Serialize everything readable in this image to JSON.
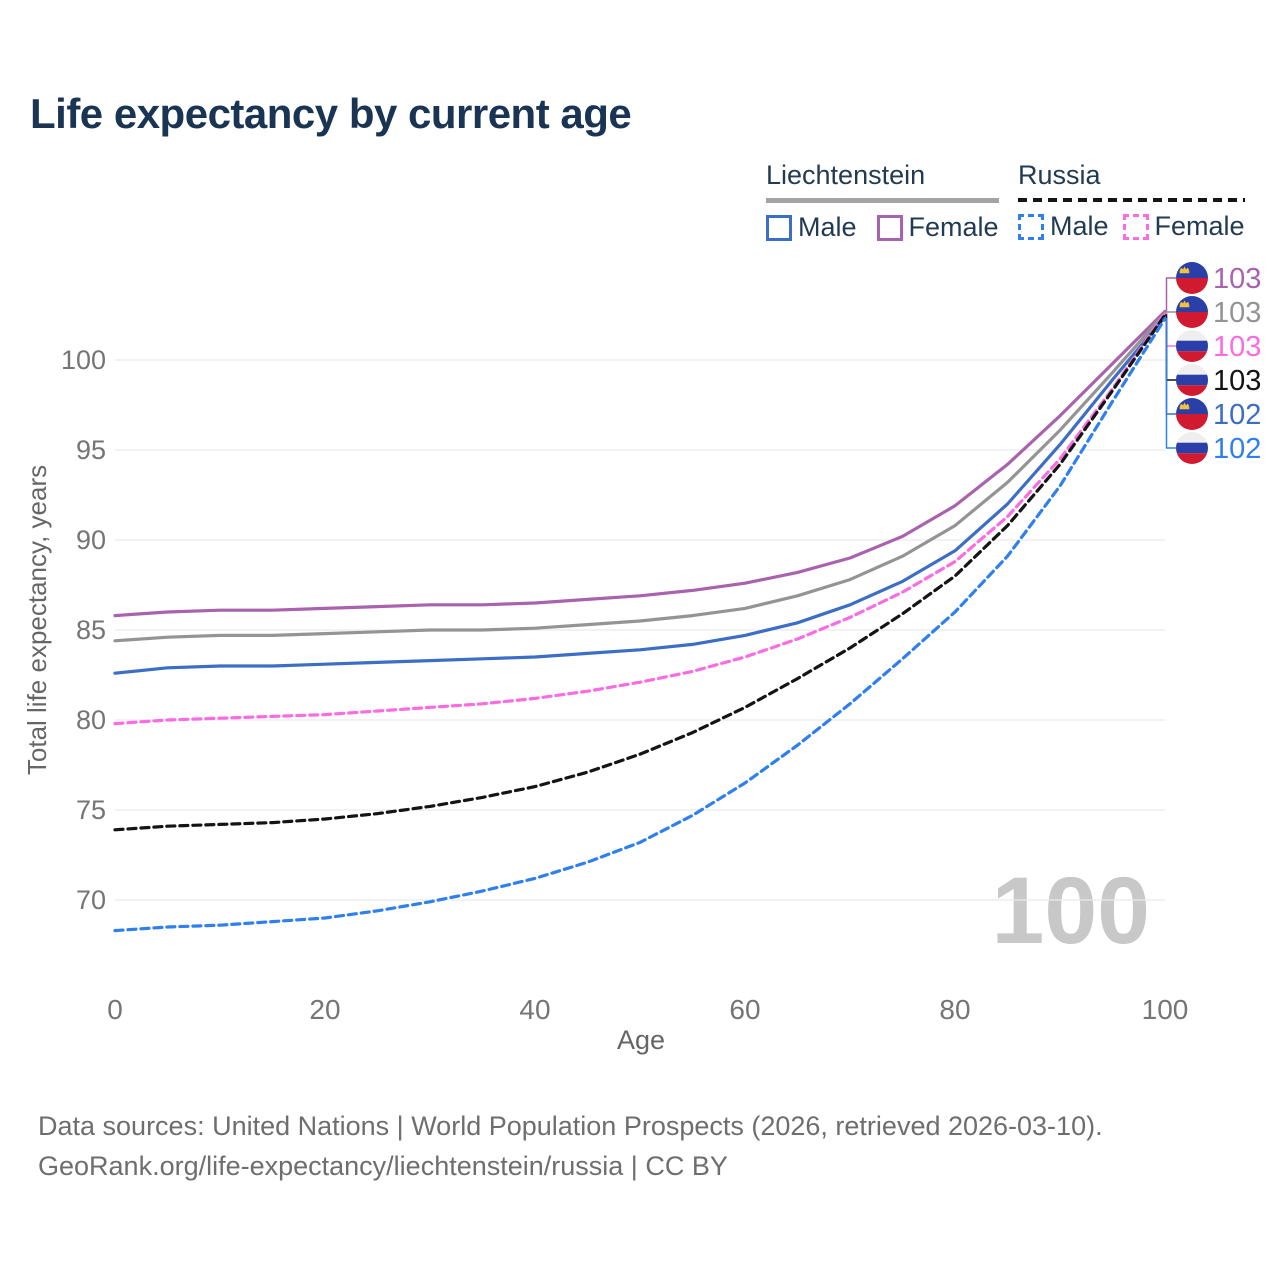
{
  "title": "Life expectancy by current age",
  "legend": {
    "groups": [
      {
        "label": "Liechtenstein",
        "line_style": "solid",
        "items": [
          {
            "label": "Male",
            "color": "#3c6ec5"
          },
          {
            "label": "Female",
            "color": "#a963ae"
          }
        ]
      },
      {
        "label": "Russia",
        "line_style": "dashed",
        "items": [
          {
            "label": "Male",
            "color": "#2f80ee"
          },
          {
            "label": "Female",
            "color": "#fb6ce1"
          }
        ]
      }
    ]
  },
  "chart_data": {
    "type": "line",
    "title": "Life expectancy by current age",
    "xlabel": "Age",
    "ylabel": "Total life expectancy, years",
    "x_ticks": [
      0,
      20,
      40,
      60,
      80,
      100
    ],
    "y_ticks": [
      70,
      75,
      80,
      85,
      90,
      95,
      100
    ],
    "xlim": [
      0,
      100
    ],
    "ylim": [
      67,
      103.5
    ],
    "grid": "horizontal-only",
    "legend_position": "top-right",
    "watermark": "100",
    "ages": [
      0,
      5,
      10,
      15,
      20,
      25,
      30,
      35,
      40,
      45,
      50,
      55,
      60,
      65,
      70,
      75,
      80,
      85,
      90,
      95,
      100
    ],
    "series": [
      {
        "name": "Liechtenstein Female",
        "country": "Liechtenstein",
        "sex": "Female",
        "color": "#a963ae",
        "dash": false,
        "end_label": "103",
        "label_row": 0,
        "values": [
          85.8,
          86.0,
          86.1,
          86.1,
          86.2,
          86.3,
          86.4,
          86.4,
          86.5,
          86.7,
          86.9,
          87.2,
          87.6,
          88.2,
          89.0,
          90.2,
          91.9,
          94.2,
          96.9,
          99.8,
          102.7
        ]
      },
      {
        "name": "Liechtenstein (both sexes)",
        "country": "Liechtenstein",
        "sex": "All",
        "color": "#949494",
        "dash": false,
        "end_label": "103",
        "label_row": 1,
        "values": [
          84.4,
          84.6,
          84.7,
          84.7,
          84.8,
          84.9,
          85.0,
          85.0,
          85.1,
          85.3,
          85.5,
          85.8,
          86.2,
          86.9,
          87.8,
          89.1,
          90.8,
          93.2,
          96.1,
          99.3,
          102.6
        ]
      },
      {
        "name": "Liechtenstein Male",
        "country": "Liechtenstein",
        "sex": "Male",
        "color": "#3c6ec5",
        "dash": false,
        "end_label": "102",
        "label_row": 4,
        "values": [
          82.6,
          82.9,
          83.0,
          83.0,
          83.1,
          83.2,
          83.3,
          83.4,
          83.5,
          83.7,
          83.9,
          84.2,
          84.7,
          85.4,
          86.4,
          87.7,
          89.4,
          92.0,
          95.3,
          98.9,
          102.4
        ]
      },
      {
        "name": "Russia Female",
        "country": "Russia",
        "sex": "Female",
        "color": "#fb6ce1",
        "dash": true,
        "end_label": "103",
        "label_row": 2,
        "values": [
          79.8,
          80.0,
          80.1,
          80.2,
          80.3,
          80.5,
          80.7,
          80.9,
          81.2,
          81.6,
          82.1,
          82.7,
          83.5,
          84.5,
          85.7,
          87.1,
          88.8,
          91.3,
          94.5,
          98.4,
          102.6
        ]
      },
      {
        "name": "Russia (both sexes)",
        "country": "Russia",
        "sex": "All",
        "color": "#141414",
        "dash": true,
        "end_label": "103",
        "label_row": 3,
        "values": [
          73.9,
          74.1,
          74.2,
          74.3,
          74.5,
          74.8,
          75.2,
          75.7,
          76.3,
          77.1,
          78.1,
          79.3,
          80.7,
          82.3,
          84.0,
          85.9,
          88.0,
          90.8,
          94.2,
          98.3,
          102.5
        ]
      },
      {
        "name": "Russia Male",
        "country": "Russia",
        "sex": "Male",
        "color": "#2f80ee",
        "dash": true,
        "end_label": "102",
        "label_row": 5,
        "values": [
          68.3,
          68.5,
          68.6,
          68.8,
          69.0,
          69.4,
          69.9,
          70.5,
          71.2,
          72.1,
          73.2,
          74.7,
          76.5,
          78.6,
          80.9,
          83.4,
          86.0,
          89.1,
          93.0,
          97.7,
          102.3
        ]
      }
    ]
  },
  "footer": {
    "line1": "Data sources: United Nations | World Population Prospects (2026, retrieved 2026-03-10).",
    "line2": "GeoRank.org/life-expectancy/liechtenstein/russia | CC BY"
  }
}
